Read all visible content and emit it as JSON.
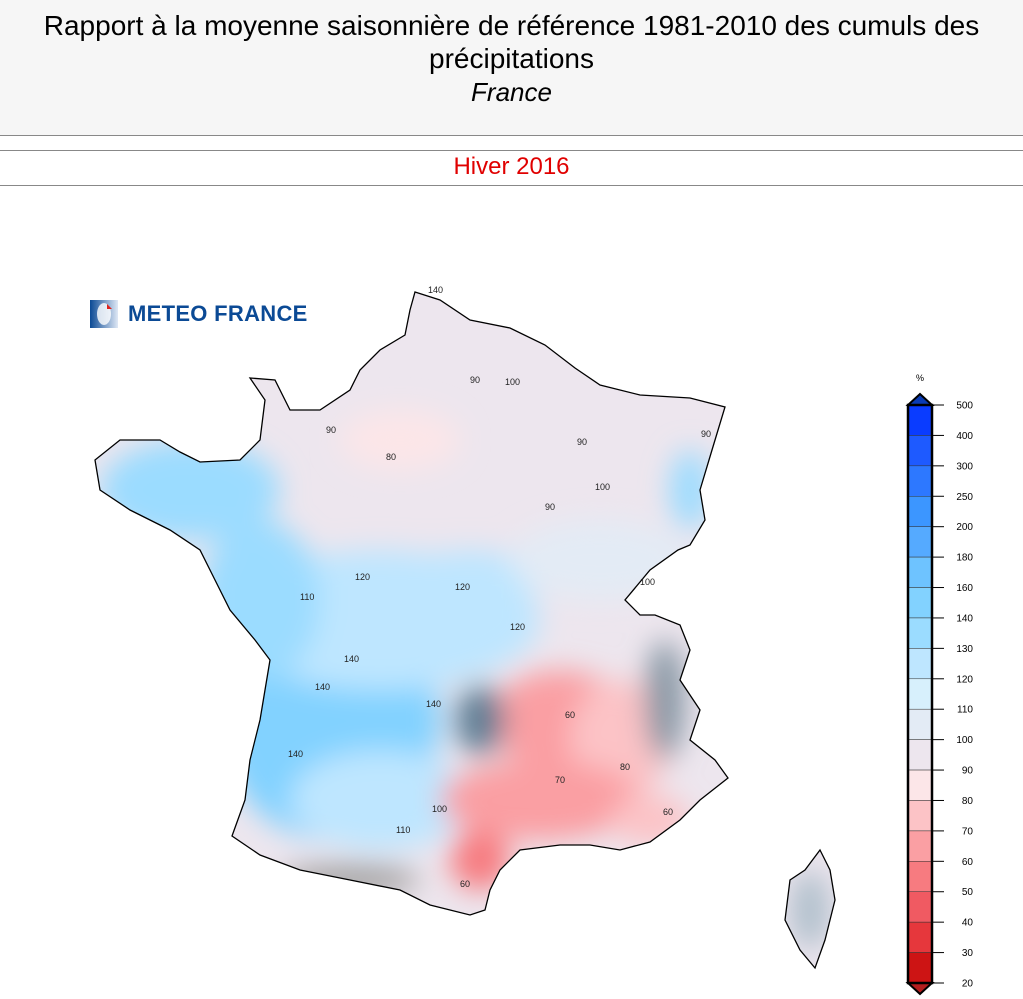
{
  "header": {
    "title": "Rapport à la moyenne saisonnière de référence 1981-2010 des cumuls des précipitations",
    "region": "France"
  },
  "season": "Hiver 2016",
  "logo": {
    "text": "METEO FRANCE",
    "icon": "meteo-france-logo-icon"
  },
  "legend": {
    "unit": "%",
    "ticks": [
      "500",
      "400",
      "300",
      "250",
      "200",
      "180",
      "160",
      "140",
      "130",
      "120",
      "110",
      "100",
      "90",
      "80",
      "70",
      "60",
      "50",
      "40",
      "30",
      "20"
    ],
    "colors": [
      "#0a3cff",
      "#1e5aff",
      "#2d78ff",
      "#3c96ff",
      "#55aaff",
      "#6ec3ff",
      "#82d2ff",
      "#9bdcff",
      "#bee6ff",
      "#d7f0fc",
      "#e3ebf5",
      "#ede6ee",
      "#fce6e8",
      "#fcc3c6",
      "#fa9fa3",
      "#f77b80",
      "#f05a62",
      "#e6373c",
      "#cd1414"
    ],
    "top_arrow_color": "#0a3cb4",
    "bottom_arrow_color": "#b41e1e"
  },
  "map": {
    "contour_labels": [
      "140",
      "90",
      "90",
      "80",
      "90",
      "100",
      "100",
      "90",
      "120",
      "140",
      "110",
      "120",
      "100",
      "120",
      "140",
      "140",
      "140",
      "100",
      "110",
      "60",
      "80",
      "70",
      "60",
      "60",
      "90"
    ]
  }
}
